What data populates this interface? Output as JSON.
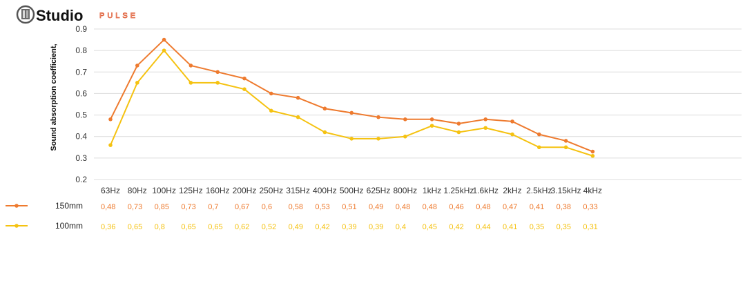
{
  "brand": {
    "name": "Studio",
    "tagline": "PULSE",
    "accent_color": "#e0603a",
    "logo_icon": "studio-building-logo-icon"
  },
  "chart_data": {
    "type": "line",
    "title": "",
    "ylabel": "Sound absorption coefficient,",
    "xlabel": "",
    "ylim": [
      0.2,
      0.9
    ],
    "yticks": [
      "0.2",
      "0.3",
      "0.4",
      "0.5",
      "0.6",
      "0.7",
      "0.8",
      "0.9"
    ],
    "grid": true,
    "legend": "bottom-left data table",
    "categories": [
      "63Hz",
      "80Hz",
      "100Hz",
      "125Hz",
      "160Hz",
      "200Hz",
      "250Hz",
      "315Hz",
      "400Hz",
      "500Hz",
      "625Hz",
      "800Hz",
      "1kHz",
      "1.25kHz",
      "1.6kHz",
      "2kHz",
      "2.5kHz",
      "3.15kHz",
      "4kHz"
    ],
    "series": [
      {
        "name": "150mm",
        "color": "#ee7a2e",
        "values": [
          0.48,
          0.73,
          0.85,
          0.73,
          0.7,
          0.67,
          0.6,
          0.58,
          0.53,
          0.51,
          0.49,
          0.48,
          0.48,
          0.46,
          0.48,
          0.47,
          0.41,
          0.38,
          0.33
        ],
        "labels": [
          "0,48",
          "0,73",
          "0,85",
          "0,73",
          "0,7",
          "0,67",
          "0,6",
          "0,58",
          "0,53",
          "0,51",
          "0,49",
          "0,48",
          "0,48",
          "0,46",
          "0,48",
          "0,47",
          "0,41",
          "0,38",
          "0,33"
        ]
      },
      {
        "name": "100mm",
        "color": "#f5c211",
        "values": [
          0.36,
          0.65,
          0.8,
          0.65,
          0.65,
          0.62,
          0.52,
          0.49,
          0.42,
          0.39,
          0.39,
          0.4,
          0.45,
          0.42,
          0.44,
          0.41,
          0.35,
          0.35,
          0.31
        ],
        "labels": [
          "0,36",
          "0,65",
          "0,8",
          "0,65",
          "0,65",
          "0,62",
          "0,52",
          "0,49",
          "0,42",
          "0,39",
          "0,39",
          "0,4",
          "0,45",
          "0,42",
          "0,44",
          "0,41",
          "0,35",
          "0,35",
          "0,31"
        ]
      }
    ]
  }
}
